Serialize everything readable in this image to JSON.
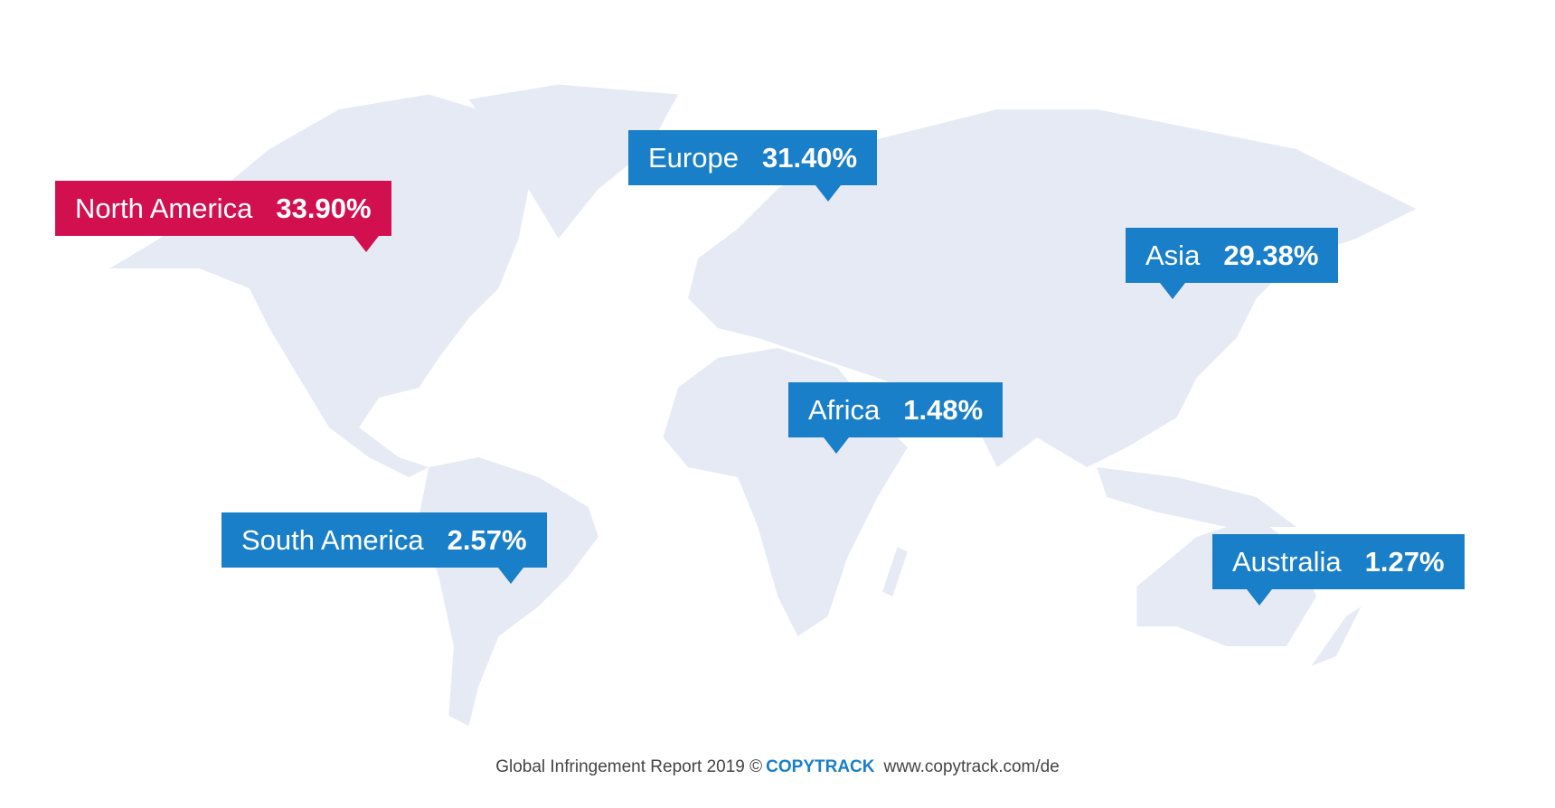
{
  "regions": [
    {
      "name": "North America",
      "value": "33.90%",
      "color": "#d3104f"
    },
    {
      "name": "Europe",
      "value": "31.40%",
      "color": "#1a7fc9"
    },
    {
      "name": "Asia",
      "value": "29.38%",
      "color": "#1a7fc9"
    },
    {
      "name": "Africa",
      "value": "1.48%",
      "color": "#1a7fc9"
    },
    {
      "name": "South America",
      "value": "2.57%",
      "color": "#1a7fc9"
    },
    {
      "name": "Australia",
      "value": "1.27%",
      "color": "#1a7fc9"
    }
  ],
  "footer": {
    "report": "Global Infringement Report 2019 ©",
    "brand": "COPYTRACK",
    "url": "www.copytrack.com/de"
  }
}
